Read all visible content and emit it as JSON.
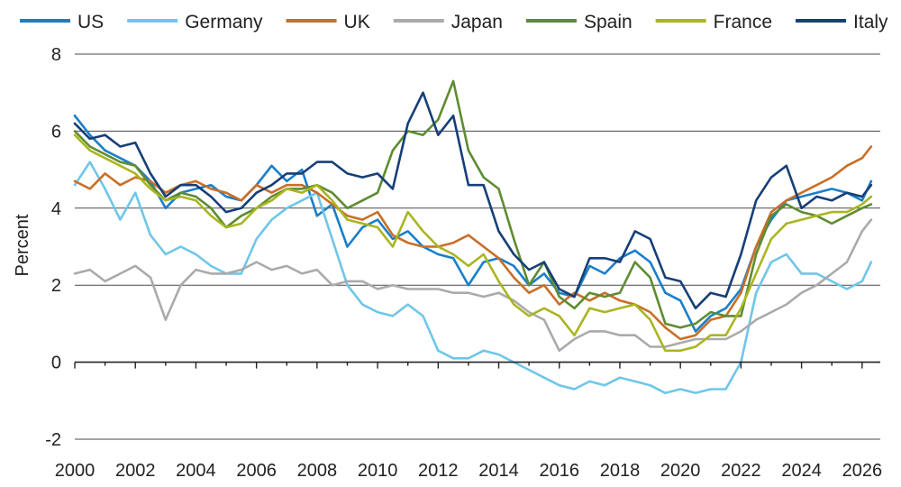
{
  "chart_data": {
    "type": "line",
    "title": "",
    "xlabel": "",
    "ylabel": "Percent",
    "xlim": [
      2000,
      2026.6
    ],
    "ylim": [
      -2,
      8
    ],
    "x_ticks": [
      2000,
      2002,
      2004,
      2006,
      2008,
      2010,
      2012,
      2014,
      2016,
      2018,
      2020,
      2022,
      2024,
      2026
    ],
    "x_tick_labels": [
      "2000",
      "2002",
      "2004",
      "2006",
      "2008",
      "2010",
      "2012",
      "2014",
      "2016",
      "2018",
      "2020",
      "2022",
      "2024",
      "2026"
    ],
    "y_ticks": [
      -2,
      0,
      2,
      4,
      6,
      8
    ],
    "y_tick_labels": [
      "-2",
      "0",
      "2",
      "4",
      "6",
      "8"
    ],
    "grid": "horizontal",
    "legend_position": "top",
    "series": [
      {
        "name": "US",
        "color": "#1a7fc9",
        "x": [
          2000,
          2000.5,
          2001,
          2001.5,
          2002,
          2002.5,
          2003,
          2003.5,
          2004,
          2004.5,
          2005,
          2005.5,
          2006,
          2006.5,
          2007,
          2007.5,
          2008,
          2008.5,
          2009,
          2009.5,
          2010,
          2010.5,
          2011,
          2011.5,
          2012,
          2012.5,
          2013,
          2013.5,
          2014,
          2014.5,
          2015,
          2015.5,
          2016,
          2016.5,
          2017,
          2017.5,
          2018,
          2018.5,
          2019,
          2019.5,
          2020,
          2020.5,
          2021,
          2021.5,
          2022,
          2022.5,
          2023,
          2023.5,
          2024,
          2024.5,
          2025,
          2025.5,
          2026,
          2026.3
        ],
        "values": [
          6.4,
          5.9,
          5.5,
          5.3,
          5.1,
          4.7,
          4.0,
          4.4,
          4.5,
          4.6,
          4.3,
          4.2,
          4.6,
          5.1,
          4.7,
          5.0,
          3.8,
          4.1,
          3.0,
          3.5,
          3.7,
          3.2,
          3.4,
          3.0,
          2.8,
          2.7,
          2.0,
          2.6,
          2.7,
          2.5,
          2.0,
          2.3,
          1.8,
          1.7,
          2.5,
          2.3,
          2.7,
          2.9,
          2.6,
          1.8,
          1.6,
          0.8,
          1.2,
          1.4,
          1.9,
          3.0,
          3.7,
          4.2,
          4.3,
          4.4,
          4.5,
          4.4,
          4.2,
          4.7
        ]
      },
      {
        "name": "Germany",
        "color": "#6fc6e8",
        "x": [
          2000,
          2000.5,
          2001,
          2001.5,
          2002,
          2002.5,
          2003,
          2003.5,
          2004,
          2004.5,
          2005,
          2005.5,
          2006,
          2006.5,
          2007,
          2007.5,
          2008,
          2008.5,
          2009,
          2009.5,
          2010,
          2010.5,
          2011,
          2011.5,
          2012,
          2012.5,
          2013,
          2013.5,
          2014,
          2014.5,
          2015,
          2015.5,
          2016,
          2016.5,
          2017,
          2017.5,
          2018,
          2018.5,
          2019,
          2019.5,
          2020,
          2020.5,
          2021,
          2021.5,
          2022,
          2022.5,
          2023,
          2023.5,
          2024,
          2024.5,
          2025,
          2025.5,
          2026,
          2026.3
        ],
        "values": [
          4.6,
          5.2,
          4.5,
          3.7,
          4.4,
          3.3,
          2.8,
          3.0,
          2.8,
          2.5,
          2.3,
          2.3,
          3.2,
          3.7,
          4.0,
          4.2,
          4.4,
          3.2,
          2.0,
          1.5,
          1.3,
          1.2,
          1.5,
          1.2,
          0.3,
          0.1,
          0.1,
          0.3,
          0.2,
          0.0,
          -0.2,
          -0.4,
          -0.6,
          -0.7,
          -0.5,
          -0.6,
          -0.4,
          -0.5,
          -0.6,
          -0.8,
          -0.7,
          -0.8,
          -0.7,
          -0.7,
          0.0,
          1.8,
          2.6,
          2.8,
          2.3,
          2.3,
          2.1,
          1.9,
          2.1,
          2.6
        ]
      },
      {
        "name": "UK",
        "color": "#c86f28",
        "x": [
          2000,
          2000.5,
          2001,
          2001.5,
          2002,
          2002.5,
          2003,
          2003.5,
          2004,
          2004.5,
          2005,
          2005.5,
          2006,
          2006.5,
          2007,
          2007.5,
          2008,
          2008.5,
          2009,
          2009.5,
          2010,
          2010.5,
          2011,
          2011.5,
          2012,
          2012.5,
          2013,
          2013.5,
          2014,
          2014.5,
          2015,
          2015.5,
          2016,
          2016.5,
          2017,
          2017.5,
          2018,
          2018.5,
          2019,
          2019.5,
          2020,
          2020.5,
          2021,
          2021.5,
          2022,
          2022.5,
          2023,
          2023.5,
          2024,
          2024.5,
          2025,
          2025.5,
          2026,
          2026.3
        ],
        "values": [
          4.7,
          4.5,
          4.9,
          4.6,
          4.8,
          4.7,
          4.4,
          4.6,
          4.7,
          4.5,
          4.4,
          4.2,
          4.6,
          4.4,
          4.6,
          4.6,
          4.4,
          4.1,
          3.8,
          3.7,
          3.9,
          3.3,
          3.1,
          3.0,
          3.0,
          3.1,
          3.3,
          3.0,
          2.7,
          2.2,
          1.8,
          2.0,
          1.5,
          1.8,
          1.6,
          1.8,
          1.6,
          1.5,
          1.3,
          0.9,
          0.6,
          0.7,
          1.1,
          1.2,
          1.8,
          3.0,
          3.9,
          4.2,
          4.4,
          4.6,
          4.8,
          5.1,
          5.3,
          5.6
        ]
      },
      {
        "name": "Japan",
        "color": "#aaaaaa",
        "x": [
          2000,
          2000.5,
          2001,
          2001.5,
          2002,
          2002.5,
          2003,
          2003.5,
          2004,
          2004.5,
          2005,
          2005.5,
          2006,
          2006.5,
          2007,
          2007.5,
          2008,
          2008.5,
          2009,
          2009.5,
          2010,
          2010.5,
          2011,
          2011.5,
          2012,
          2012.5,
          2013,
          2013.5,
          2014,
          2014.5,
          2015,
          2015.5,
          2016,
          2016.5,
          2017,
          2017.5,
          2018,
          2018.5,
          2019,
          2019.5,
          2020,
          2020.5,
          2021,
          2021.5,
          2022,
          2022.5,
          2023,
          2023.5,
          2024,
          2024.5,
          2025,
          2025.5,
          2026,
          2026.3
        ],
        "values": [
          2.3,
          2.4,
          2.1,
          2.3,
          2.5,
          2.2,
          1.1,
          2.0,
          2.4,
          2.3,
          2.3,
          2.4,
          2.6,
          2.4,
          2.5,
          2.3,
          2.4,
          2.0,
          2.1,
          2.1,
          1.9,
          2.0,
          1.9,
          1.9,
          1.9,
          1.8,
          1.8,
          1.7,
          1.8,
          1.6,
          1.3,
          1.1,
          0.3,
          0.6,
          0.8,
          0.8,
          0.7,
          0.7,
          0.4,
          0.4,
          0.5,
          0.6,
          0.6,
          0.6,
          0.8,
          1.1,
          1.3,
          1.5,
          1.8,
          2.0,
          2.3,
          2.6,
          3.4,
          3.7
        ]
      },
      {
        "name": "Spain",
        "color": "#5e8c31",
        "x": [
          2000,
          2000.5,
          2001,
          2001.5,
          2002,
          2002.5,
          2003,
          2003.5,
          2004,
          2004.5,
          2005,
          2005.5,
          2006,
          2006.5,
          2007,
          2007.5,
          2008,
          2008.5,
          2009,
          2009.5,
          2010,
          2010.5,
          2011,
          2011.5,
          2012,
          2012.5,
          2013,
          2013.5,
          2014,
          2014.5,
          2015,
          2015.5,
          2016,
          2016.5,
          2017,
          2017.5,
          2018,
          2018.5,
          2019,
          2019.5,
          2020,
          2020.5,
          2021,
          2021.5,
          2022,
          2022.5,
          2023,
          2023.5,
          2024,
          2024.5,
          2025,
          2025.5,
          2026,
          2026.3
        ],
        "values": [
          6.0,
          5.6,
          5.4,
          5.2,
          5.1,
          4.6,
          4.2,
          4.4,
          4.3,
          4.0,
          3.5,
          3.8,
          4.0,
          4.3,
          4.5,
          4.5,
          4.6,
          4.4,
          4.0,
          4.2,
          4.4,
          5.5,
          6.0,
          5.9,
          6.3,
          7.3,
          5.5,
          4.8,
          4.5,
          3.2,
          2.0,
          2.6,
          1.7,
          1.4,
          1.8,
          1.7,
          1.8,
          2.6,
          2.2,
          1.0,
          0.9,
          1.0,
          1.3,
          1.2,
          1.2,
          2.8,
          3.8,
          4.1,
          3.9,
          3.8,
          3.6,
          3.8,
          4.0,
          4.1
        ]
      },
      {
        "name": "France",
        "color": "#aab522",
        "x": [
          2000,
          2000.5,
          2001,
          2001.5,
          2002,
          2002.5,
          2003,
          2003.5,
          2004,
          2004.5,
          2005,
          2005.5,
          2006,
          2006.5,
          2007,
          2007.5,
          2008,
          2008.5,
          2009,
          2009.5,
          2010,
          2010.5,
          2011,
          2011.5,
          2012,
          2012.5,
          2013,
          2013.5,
          2014,
          2014.5,
          2015,
          2015.5,
          2016,
          2016.5,
          2017,
          2017.5,
          2018,
          2018.5,
          2019,
          2019.5,
          2020,
          2020.5,
          2021,
          2021.5,
          2022,
          2022.5,
          2023,
          2023.5,
          2024,
          2024.5,
          2025,
          2025.5,
          2026,
          2026.3
        ],
        "values": [
          5.9,
          5.5,
          5.3,
          5.1,
          4.9,
          4.5,
          4.2,
          4.3,
          4.2,
          3.8,
          3.5,
          3.6,
          4.0,
          4.2,
          4.5,
          4.4,
          4.6,
          4.2,
          3.7,
          3.6,
          3.5,
          3.0,
          3.9,
          3.4,
          3.0,
          2.8,
          2.5,
          2.8,
          2.1,
          1.5,
          1.2,
          1.4,
          1.2,
          0.7,
          1.4,
          1.3,
          1.4,
          1.5,
          1.1,
          0.3,
          0.3,
          0.4,
          0.7,
          0.7,
          1.4,
          2.3,
          3.2,
          3.6,
          3.7,
          3.8,
          3.9,
          3.9,
          4.1,
          4.3
        ]
      },
      {
        "name": "Italy",
        "color": "#163f78",
        "x": [
          2000,
          2000.5,
          2001,
          2001.5,
          2002,
          2002.5,
          2003,
          2003.5,
          2004,
          2004.5,
          2005,
          2005.5,
          2006,
          2006.5,
          2007,
          2007.5,
          2008,
          2008.5,
          2009,
          2009.5,
          2010,
          2010.5,
          2011,
          2011.5,
          2012,
          2012.5,
          2013,
          2013.5,
          2014,
          2014.5,
          2015,
          2015.5,
          2016,
          2016.5,
          2017,
          2017.5,
          2018,
          2018.5,
          2019,
          2019.5,
          2020,
          2020.5,
          2021,
          2021.5,
          2022,
          2022.5,
          2023,
          2023.5,
          2024,
          2024.5,
          2025,
          2025.5,
          2026,
          2026.3
        ],
        "values": [
          6.2,
          5.8,
          5.9,
          5.6,
          5.7,
          4.9,
          4.3,
          4.6,
          4.6,
          4.3,
          3.9,
          4.0,
          4.4,
          4.6,
          4.9,
          4.9,
          5.2,
          5.2,
          4.9,
          4.8,
          4.9,
          4.5,
          6.2,
          7.0,
          5.9,
          6.4,
          4.6,
          4.6,
          3.4,
          2.8,
          2.4,
          2.6,
          1.9,
          1.7,
          2.7,
          2.7,
          2.6,
          3.4,
          3.2,
          2.2,
          2.1,
          1.4,
          1.8,
          1.7,
          2.8,
          4.2,
          4.8,
          5.1,
          4.0,
          4.3,
          4.2,
          4.4,
          4.3,
          4.6
        ]
      }
    ]
  }
}
